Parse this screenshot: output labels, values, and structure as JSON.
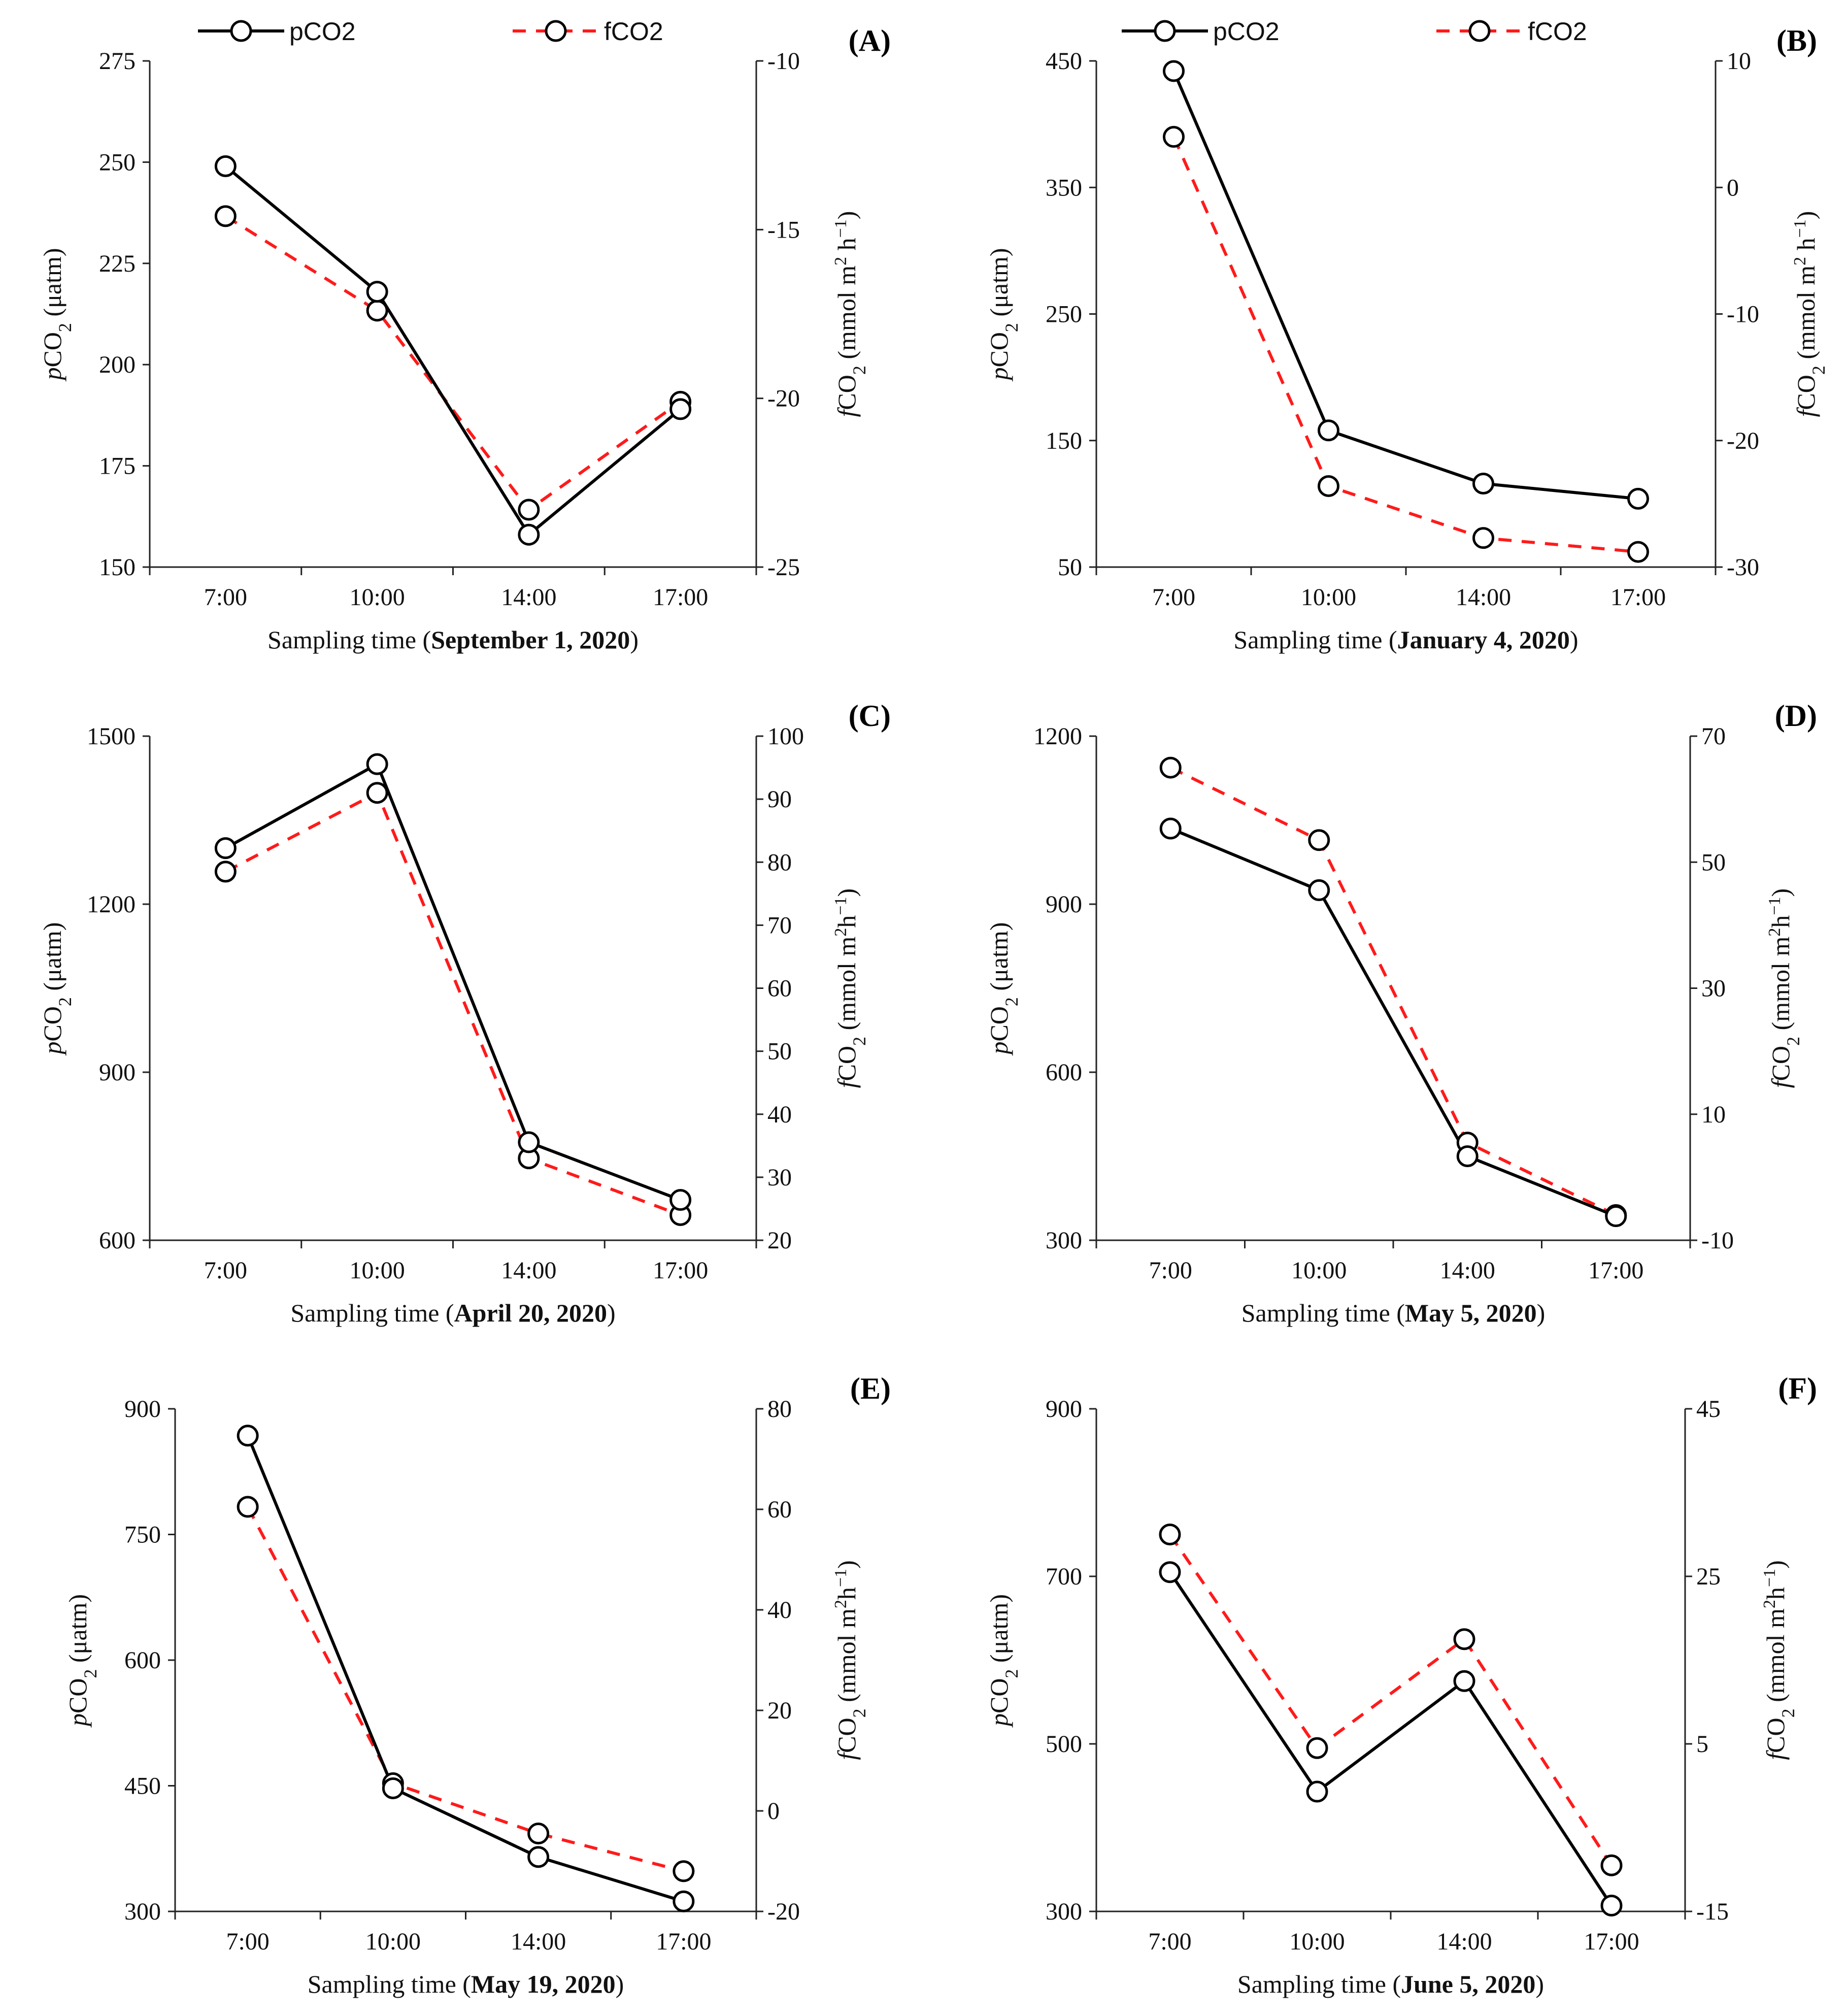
{
  "legend": {
    "series_names": [
      "pCO2",
      "fCO2"
    ],
    "colors": [
      "#000000",
      "#ff1a1a"
    ],
    "styles": [
      "solid",
      "dashed"
    ]
  },
  "chart_data": [
    {
      "type": "line",
      "panel": "(A)",
      "title": "",
      "categories": [
        "7:00",
        "10:00",
        "14:00",
        "17:00"
      ],
      "xlabel": "Sampling time (September 1, 2020)",
      "xlabel_prefix": "Sampling time (",
      "xlabel_date": "September 1, 2020",
      "xlabel_suffix": ")",
      "ylabel_left": "pCO2 (μatm)",
      "ylabel_right": "fCO2 (mmol m2 h−1)",
      "ylim_left": [
        150,
        275
      ],
      "yticks_left": [
        150,
        175,
        200,
        225,
        250,
        275
      ],
      "ylim_right": [
        -25,
        -10
      ],
      "yticks_right": [
        -25,
        -20,
        -15,
        -10
      ],
      "series": [
        {
          "name": "pCO2",
          "axis": "left",
          "values": [
            249,
            218,
            158,
            189
          ]
        },
        {
          "name": "fCO2",
          "axis": "right",
          "values": [
            -14.6,
            -17.4,
            -23.3,
            -20.1
          ]
        }
      ]
    },
    {
      "type": "line",
      "panel": "(B)",
      "title": "",
      "categories": [
        "7:00",
        "10:00",
        "14:00",
        "17:00"
      ],
      "xlabel": "Sampling time (January 4, 2020)",
      "xlabel_prefix": "Sampling time (",
      "xlabel_date": "January 4, 2020",
      "xlabel_suffix": ")",
      "ylabel_left": "pCO2 (μatm)",
      "ylabel_right": "fCO2 (mmol m2 h−1)",
      "ylim_left": [
        50,
        450
      ],
      "yticks_left": [
        50,
        150,
        250,
        350,
        450
      ],
      "ylim_right": [
        -30,
        10
      ],
      "yticks_right": [
        -30,
        -20,
        -10,
        0,
        10
      ],
      "series": [
        {
          "name": "pCO2",
          "axis": "left",
          "values": [
            442,
            158,
            116,
            104
          ]
        },
        {
          "name": "fCO2",
          "axis": "right",
          "values": [
            4.0,
            -23.6,
            -27.7,
            -28.8
          ]
        }
      ]
    },
    {
      "type": "line",
      "panel": "(C)",
      "title": "",
      "categories": [
        "7:00",
        "10:00",
        "14:00",
        "17:00"
      ],
      "xlabel": "Sampling time (April 20, 2020)",
      "xlabel_prefix": "Sampling time (",
      "xlabel_date": "April 20, 2020",
      "xlabel_suffix": ")",
      "ylabel_left": "pCO2 (μatm)",
      "ylabel_right": "fCO2 (mmol m2h−1)",
      "ylim_left": [
        600,
        1500
      ],
      "yticks_left": [
        600,
        900,
        1200,
        1500
      ],
      "ylim_right": [
        20,
        100
      ],
      "yticks_right": [
        20,
        30,
        40,
        50,
        60,
        70,
        80,
        90,
        100
      ],
      "series": [
        {
          "name": "pCO2",
          "axis": "left",
          "values": [
            1300,
            1450,
            775,
            672
          ]
        },
        {
          "name": "fCO2",
          "axis": "right",
          "values": [
            78.5,
            91.0,
            33.0,
            24.0
          ]
        }
      ]
    },
    {
      "type": "line",
      "panel": "(D)",
      "title": "",
      "categories": [
        "7:00",
        "10:00",
        "14:00",
        "17:00"
      ],
      "xlabel": "Sampling time (May 5, 2020)",
      "xlabel_prefix": "Sampling time (",
      "xlabel_date": "May 5, 2020",
      "xlabel_suffix": ")",
      "ylabel_left": "pCO2 (μatm)",
      "ylabel_right": "fCO2 (mmol m2h−1)",
      "ylim_left": [
        300,
        1200
      ],
      "yticks_left": [
        300,
        600,
        900,
        1200
      ],
      "ylim_right": [
        -10,
        70
      ],
      "yticks_right": [
        -10,
        10,
        30,
        50,
        70
      ],
      "series": [
        {
          "name": "pCO2",
          "axis": "left",
          "values": [
            1035,
            925,
            450,
            343
          ]
        },
        {
          "name": "fCO2",
          "axis": "right",
          "values": [
            65.0,
            53.5,
            5.5,
            -6.0
          ]
        }
      ]
    },
    {
      "type": "line",
      "panel": "(E)",
      "title": "",
      "categories": [
        "7:00",
        "10:00",
        "14:00",
        "17:00"
      ],
      "xlabel": "Sampling time (May 19, 2020)",
      "xlabel_prefix": "Sampling time (",
      "xlabel_date": "May 19, 2020",
      "xlabel_suffix": ")",
      "ylabel_left": "pCO2 (μatm)",
      "ylabel_right": "fCO2 (mmol m2h−1)",
      "ylim_left": [
        300,
        900
      ],
      "yticks_left": [
        300,
        450,
        600,
        750,
        900
      ],
      "ylim_right": [
        -20,
        80
      ],
      "yticks_right": [
        -20,
        0,
        20,
        40,
        60,
        80
      ],
      "series": [
        {
          "name": "pCO2",
          "axis": "left",
          "values": [
            868,
            447,
            365,
            312
          ]
        },
        {
          "name": "fCO2",
          "axis": "right",
          "values": [
            60.5,
            5.5,
            -4.5,
            -12.0
          ]
        }
      ]
    },
    {
      "type": "line",
      "panel": "(F)",
      "title": "",
      "categories": [
        "7:00",
        "10:00",
        "14:00",
        "17:00"
      ],
      "xlabel": "Sampling time (June 5, 2020)",
      "xlabel_prefix": "Sampling time (",
      "xlabel_date": "June 5, 2020",
      "xlabel_suffix": ")",
      "ylabel_left": "pCO2 (μatm)",
      "ylabel_right": "fCO2 (mmol m2h−1)",
      "ylim_left": [
        300,
        900
      ],
      "yticks_left": [
        300,
        500,
        700,
        900
      ],
      "ylim_right": [
        -15,
        45
      ],
      "yticks_right": [
        -15,
        5,
        25,
        45
      ],
      "series": [
        {
          "name": "pCO2",
          "axis": "left",
          "values": [
            705,
            443,
            575,
            307
          ]
        },
        {
          "name": "fCO2",
          "axis": "right",
          "values": [
            30.0,
            4.5,
            17.5,
            -9.5
          ]
        }
      ]
    }
  ]
}
